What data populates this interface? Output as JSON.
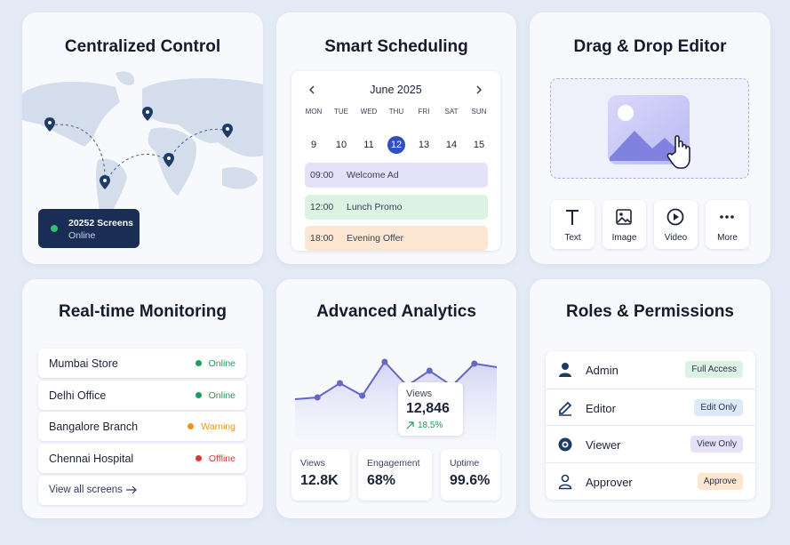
{
  "centralized_control": {
    "title": "Centralized Control",
    "status": {
      "count": "20252 Screens",
      "state": "Online"
    }
  },
  "smart_scheduling": {
    "title": "Smart Scheduling",
    "month": "June 2025",
    "weekdays": [
      "MON",
      "TUE",
      "WED",
      "THU",
      "FRI",
      "SAT",
      "SUN"
    ],
    "days": [
      "9",
      "10",
      "11",
      "12",
      "13",
      "14",
      "15"
    ],
    "selected": 3,
    "events": [
      {
        "time": "09:00",
        "label": "Welcome Ad",
        "color": "#e3e2f9"
      },
      {
        "time": "12:00",
        "label": "Lunch Promo",
        "color": "#dcf2e3"
      },
      {
        "time": "18:00",
        "label": "Evening Offer",
        "color": "#fde7d3"
      }
    ]
  },
  "drag_drop_editor": {
    "title": "Drag & Drop Editor",
    "tools": [
      "Text",
      "Image",
      "Video",
      "More"
    ]
  },
  "realtime_monitoring": {
    "title": "Real-time Monitoring",
    "locations": [
      {
        "name": "Mumbai Store",
        "status": "Online",
        "color": "#1f9d5c"
      },
      {
        "name": "Delhi Office",
        "status": "Online",
        "color": "#1f9d5c"
      },
      {
        "name": "Bangalore Branch",
        "status": "Warning",
        "color": "#e8961c"
      },
      {
        "name": "Chennai Hospital",
        "status": "Offline",
        "color": "#d23b33"
      }
    ],
    "link": "View all screens"
  },
  "advanced_analytics": {
    "title": "Advanced Analytics",
    "chart": {
      "type": "line",
      "values": [
        13,
        15,
        31,
        17,
        55,
        28,
        45,
        28,
        53,
        49
      ],
      "ylim": [
        0,
        70
      ],
      "color": "#6466c8"
    },
    "tooltip": {
      "label": "Views",
      "value": "12,846",
      "change": "18.5%"
    },
    "stats": [
      {
        "label": "Views",
        "value": "12.8K"
      },
      {
        "label": "Engagement",
        "value": "68%"
      },
      {
        "label": "Uptime",
        "value": "99.6%"
      }
    ]
  },
  "roles_permissions": {
    "title": "Roles & Permissions",
    "roles": [
      {
        "name": "Admin",
        "access": "Full Access",
        "color": "#dcf2e2"
      },
      {
        "name": "Editor",
        "access": "Edit Only",
        "color": "#dde8f8"
      },
      {
        "name": "Viewer",
        "access": "View Only",
        "color": "#e7e1f8"
      },
      {
        "name": "Approver",
        "access": "Approve",
        "color": "#fde6cf"
      }
    ]
  }
}
